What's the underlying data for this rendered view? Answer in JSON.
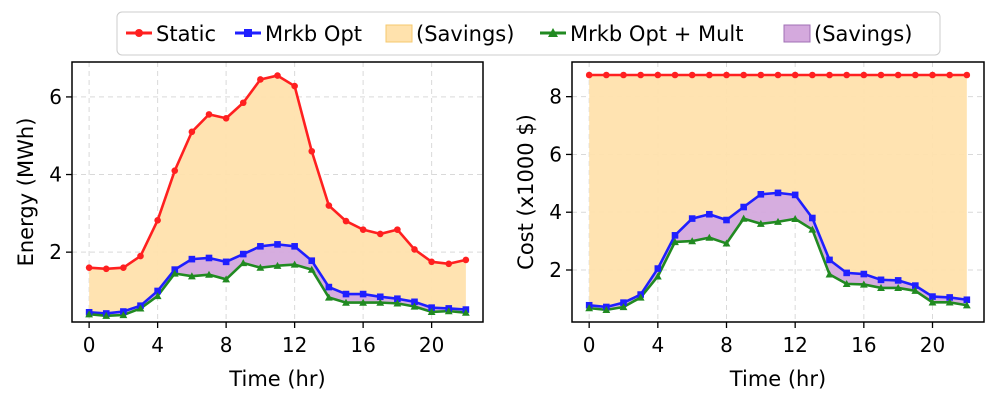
{
  "legend": {
    "static_label": "Static",
    "opt_label": "Mrkb Opt",
    "savings1_label": "(Savings)",
    "mult_label": "Mrkb Opt + Mult",
    "savings2_label": "(Savings)"
  },
  "colors": {
    "static": "#ff2020",
    "opt": "#1f1fff",
    "mult": "#218a21",
    "savings1": "#ffe2ad",
    "savings2": "#d4a9dd"
  },
  "chart_data": [
    {
      "type": "line",
      "xlabel": "Time (hr)",
      "ylabel": "Energy (MWh)",
      "xlim": [
        -1,
        23
      ],
      "ylim": [
        0.2,
        6.9
      ],
      "xticks": [
        0,
        4,
        8,
        12,
        16,
        20
      ],
      "yticks": [
        2,
        4,
        6
      ],
      "x": [
        0,
        1,
        2,
        3,
        4,
        5,
        6,
        7,
        8,
        9,
        10,
        11,
        12,
        13,
        14,
        15,
        16,
        17,
        18,
        19,
        20,
        21,
        22
      ],
      "series": [
        {
          "name": "Static",
          "values": [
            1.6,
            1.57,
            1.6,
            1.9,
            2.82,
            4.1,
            5.1,
            5.55,
            5.45,
            5.85,
            6.45,
            6.55,
            6.28,
            4.6,
            3.2,
            2.8,
            2.58,
            2.47,
            2.58,
            2.07,
            1.75,
            1.7,
            1.8
          ]
        },
        {
          "name": "Mrkb Opt",
          "values": [
            0.45,
            0.42,
            0.47,
            0.62,
            1.0,
            1.55,
            1.82,
            1.85,
            1.75,
            1.95,
            2.15,
            2.2,
            2.15,
            1.78,
            1.1,
            0.92,
            0.92,
            0.85,
            0.8,
            0.72,
            0.57,
            0.55,
            0.52
          ]
        },
        {
          "name": "Mrkb Opt + Mult",
          "values": [
            0.4,
            0.36,
            0.38,
            0.55,
            0.87,
            1.45,
            1.38,
            1.42,
            1.3,
            1.72,
            1.6,
            1.65,
            1.68,
            1.55,
            0.83,
            0.7,
            0.7,
            0.7,
            0.68,
            0.6,
            0.46,
            0.48,
            0.44
          ]
        }
      ]
    },
    {
      "type": "line",
      "xlabel": "Time (hr)",
      "ylabel": "Cost (x1000 $)",
      "xlim": [
        -1,
        23
      ],
      "ylim": [
        0.2,
        9.2
      ],
      "xticks": [
        0,
        4,
        8,
        12,
        16,
        20
      ],
      "yticks": [
        2,
        4,
        6,
        8
      ],
      "x": [
        0,
        1,
        2,
        3,
        4,
        5,
        6,
        7,
        8,
        9,
        10,
        11,
        12,
        13,
        14,
        15,
        16,
        17,
        18,
        19,
        20,
        21,
        22
      ],
      "series": [
        {
          "name": "Static",
          "values": [
            8.75,
            8.75,
            8.75,
            8.75,
            8.75,
            8.75,
            8.75,
            8.75,
            8.75,
            8.75,
            8.75,
            8.75,
            8.75,
            8.75,
            8.75,
            8.75,
            8.75,
            8.75,
            8.75,
            8.75,
            8.75,
            8.75,
            8.75
          ]
        },
        {
          "name": "Mrkb Opt",
          "values": [
            0.78,
            0.72,
            0.87,
            1.15,
            2.05,
            3.2,
            3.78,
            3.93,
            3.73,
            4.18,
            4.62,
            4.67,
            4.6,
            3.8,
            2.35,
            1.9,
            1.86,
            1.66,
            1.64,
            1.46,
            1.08,
            1.05,
            0.97
          ]
        },
        {
          "name": "Mrkb Opt + Mult",
          "values": [
            0.68,
            0.62,
            0.72,
            1.05,
            1.78,
            2.97,
            3.0,
            3.12,
            2.92,
            3.78,
            3.6,
            3.67,
            3.77,
            3.4,
            1.85,
            1.52,
            1.5,
            1.38,
            1.38,
            1.28,
            0.88,
            0.88,
            0.78
          ]
        }
      ]
    }
  ]
}
